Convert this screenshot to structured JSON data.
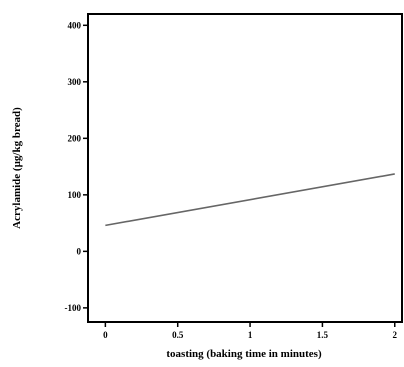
{
  "chart_data": {
    "type": "line",
    "title": "",
    "xlabel": "toasting (baking time in minutes)",
    "ylabel": "Acrylamide (µg/kg bread)",
    "xlim": [
      -0.12,
      2.05
    ],
    "ylim": [
      -125,
      420
    ],
    "x_ticks": [
      0,
      0.5,
      1,
      1.5,
      2
    ],
    "x_tick_labels": [
      "0",
      "0.5",
      "1",
      "1.5",
      "2"
    ],
    "y_ticks": [
      -100,
      0,
      100,
      200,
      300,
      400
    ],
    "y_tick_labels": [
      "-100",
      "0",
      "100",
      "200",
      "300",
      "400"
    ],
    "grid": false,
    "legend": "none",
    "series": [
      {
        "x": [
          0,
          2
        ],
        "y": [
          46,
          137
        ],
        "color": "#666666"
      }
    ]
  }
}
